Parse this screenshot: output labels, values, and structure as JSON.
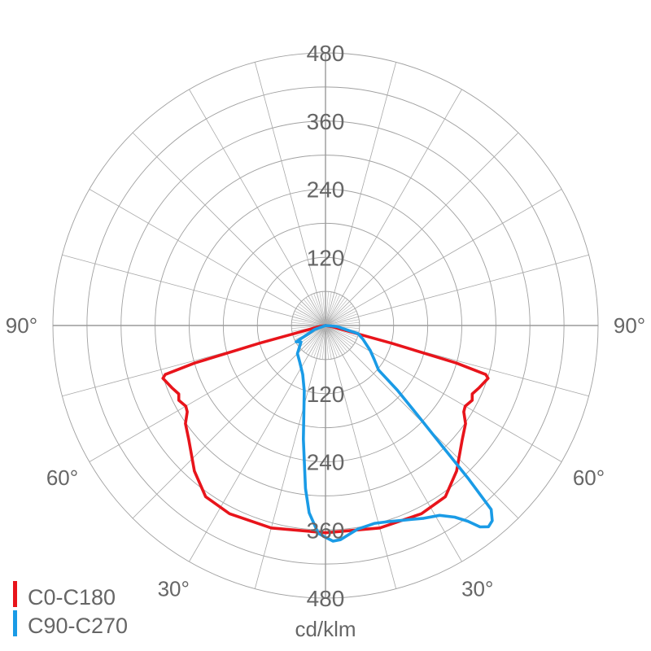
{
  "chart_data": {
    "type": "polar-line",
    "unit_label": "cd/klm",
    "radial_range": [
      0,
      480
    ],
    "radial_ticks": [
      120,
      240,
      360,
      480
    ],
    "radial_grid_step": 60,
    "angular_grid_step_deg": 15,
    "angle_tick_labels": {
      "left": [
        "90°",
        "60°",
        "30°"
      ],
      "right": [
        "90°",
        "60°",
        "30°"
      ]
    },
    "grid": true,
    "legend_placement": "bottom-left",
    "series": [
      {
        "name": "C0-C180",
        "color": "#e8141b",
        "symmetric": true,
        "angles_deg": [
          0,
          15,
          27,
          35,
          42,
          50,
          55,
          58,
          60,
          63,
          65,
          68,
          72,
          73,
          74,
          75,
          76,
          80,
          90
        ],
        "values": [
          365,
          369,
          372,
          368,
          345,
          314,
          301,
          287,
          284,
          290,
          285,
          292,
          301,
          295,
          240,
          120,
          40,
          10,
          0
        ]
      },
      {
        "name": "C90-C270",
        "color": "#1a9be6",
        "symmetric": false,
        "angles_deg": [
          -90,
          -70,
          -61,
          -56,
          -45,
          -35,
          -25,
          -18,
          -11,
          -7,
          -5,
          -2,
          0,
          2,
          4,
          9,
          14,
          18,
          27,
          31,
          34,
          36,
          37.5,
          39,
          40.5,
          42,
          43,
          44,
          46,
          48,
          50,
          55,
          61,
          70,
          76,
          85,
          90
        ],
        "values": [
          0,
          20,
          59,
          52,
          70,
          79,
          95,
          121,
          204,
          289,
          331,
          366,
          373,
          380,
          378,
          363,
          359,
          363,
          381,
          390,
          407,
          426,
          447,
          456,
          452,
          436,
          370,
          300,
          220,
          170,
          122,
          105,
          90,
          70,
          59,
          20,
          0
        ]
      }
    ]
  }
}
